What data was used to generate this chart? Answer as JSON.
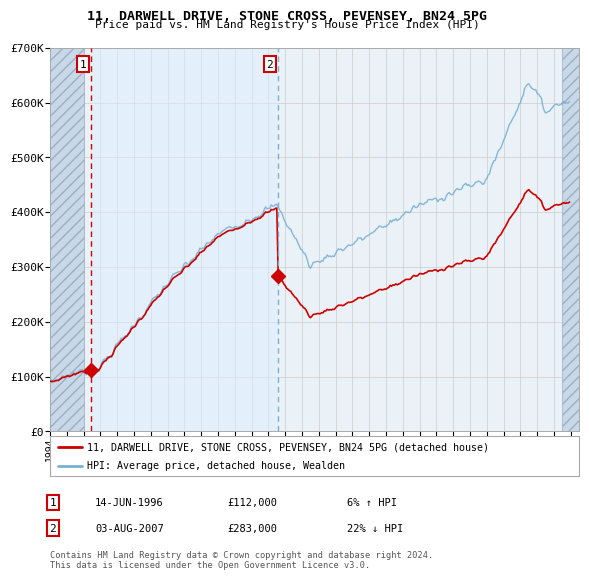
{
  "title": "11, DARWELL DRIVE, STONE CROSS, PEVENSEY, BN24 5PG",
  "subtitle": "Price paid vs. HM Land Registry's House Price Index (HPI)",
  "ylim": [
    0,
    700000
  ],
  "yticks": [
    0,
    100000,
    200000,
    300000,
    400000,
    500000,
    600000,
    700000
  ],
  "ytick_labels": [
    "£0",
    "£100K",
    "£200K",
    "£300K",
    "£400K",
    "£500K",
    "£600K",
    "£700K"
  ],
  "t1_x": 1996.45,
  "t1_y": 112000,
  "t2_x": 2007.58,
  "t2_y": 283000,
  "legend_line1": "11, DARWELL DRIVE, STONE CROSS, PEVENSEY, BN24 5PG (detached house)",
  "legend_line2": "HPI: Average price, detached house, Wealden",
  "footer": "Contains HM Land Registry data © Crown copyright and database right 2024.\nThis data is licensed under the Open Government Licence v3.0.",
  "line_color_property": "#cc0000",
  "line_color_hpi": "#7ab0d4",
  "hatch_left_color": "#d0dce8",
  "hatch_right_color": "#d0dce8",
  "shade_between_color": "#ddeeff",
  "plot_bg": "#eaf2f8",
  "grid_color": "#cccccc",
  "dashed_line1_color": "#cc0000",
  "dashed_line2_color": "#7ab0d4",
  "info1_date": "14-JUN-1996",
  "info1_price": "£112,000",
  "info1_hpi": "6% ↑ HPI",
  "info2_date": "03-AUG-2007",
  "info2_price": "£283,000",
  "info2_hpi": "22% ↓ HPI",
  "xmin": 1994,
  "xmax": 2025
}
